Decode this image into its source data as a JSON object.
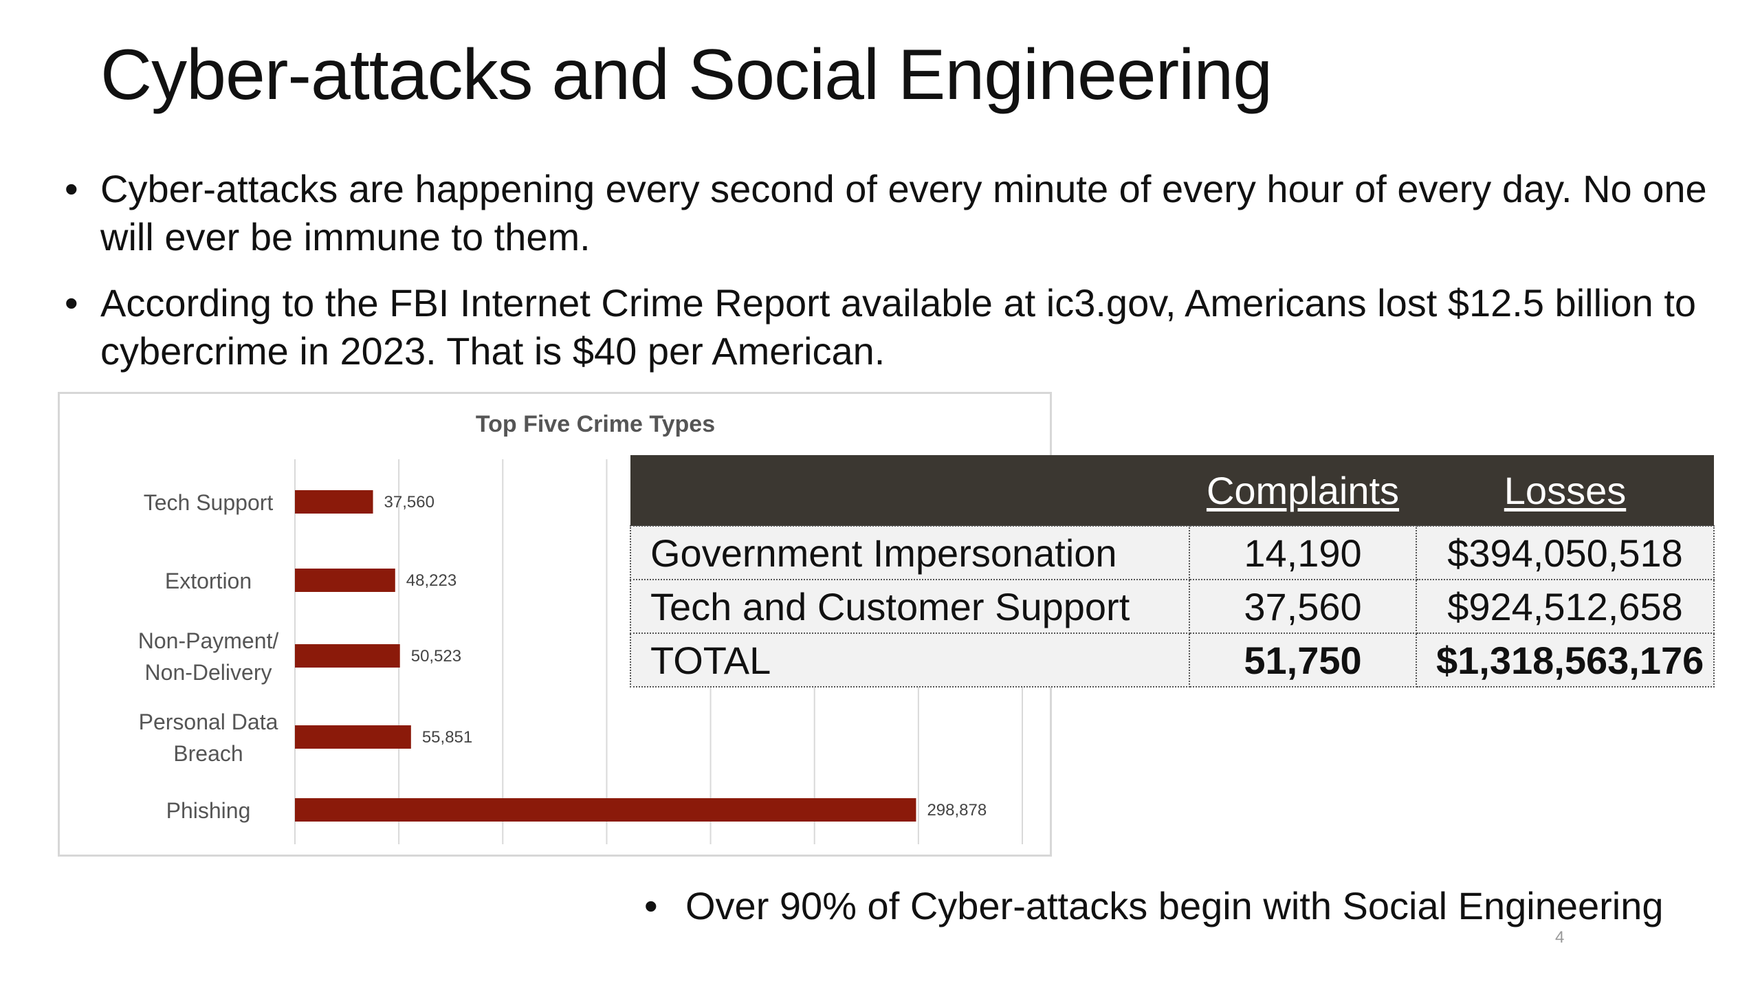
{
  "slide": {
    "title": "Cyber-attacks and Social Engineering",
    "bullet_char": "•",
    "bullets": [
      "Cyber-attacks are happening every second of every minute of every hour of every day. No one will ever be immune to them.",
      "According to the FBI Internet Crime Report available at ic3.gov, Americans lost $12.5 billion to cybercrime in 2023. That is $40 per American.",
      "Over 90% of Cyber-attacks begin with Social Engineering"
    ],
    "page_number": "4"
  },
  "table": {
    "headers": [
      "",
      "Complaints",
      "Losses"
    ],
    "rows": [
      {
        "label": "Government Impersonation",
        "complaints": "14,190",
        "losses": "$394,050,518"
      },
      {
        "label": "Tech and Customer Support",
        "complaints": "37,560",
        "losses": "$924,512,658"
      },
      {
        "label": "TOTAL",
        "complaints": "51,750",
        "losses": "$1,318,563,176"
      }
    ],
    "header_bg": "#3b3731",
    "row_bg": "#f2f2f2"
  },
  "chart_data": {
    "type": "bar",
    "orientation": "horizontal",
    "title": "Top Five Crime Types",
    "categories": [
      [
        "Tech Support"
      ],
      [
        "Extortion"
      ],
      [
        "Non-Payment/",
        "Non-Delivery"
      ],
      [
        "Personal Data",
        "Breach"
      ],
      [
        "Phishing"
      ]
    ],
    "values": [
      37560,
      48223,
      50523,
      55851,
      298878
    ],
    "value_labels": [
      "37,560",
      "48,223",
      "50,523",
      "55,851",
      "298,878"
    ],
    "xlim": [
      0,
      350000
    ],
    "gridlines": true,
    "bar_color": "#8b1a0a"
  }
}
